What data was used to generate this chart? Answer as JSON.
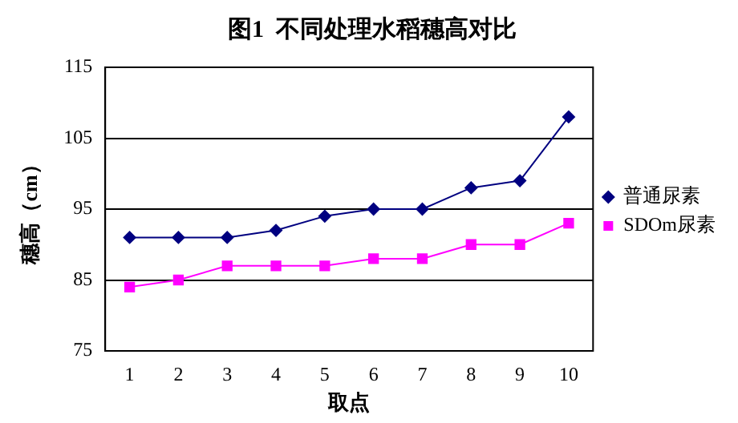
{
  "chart_data": {
    "type": "line",
    "title": "图1  不同处理水稻穗高对比",
    "xlabel": "取点",
    "ylabel": "穗高（cm）",
    "categories": [
      "1",
      "2",
      "3",
      "4",
      "5",
      "6",
      "7",
      "8",
      "9",
      "10"
    ],
    "series": [
      {
        "name": "普通尿素",
        "color": "#000080",
        "marker": "diamond",
        "values": [
          91,
          91,
          91,
          92,
          94,
          95,
          95,
          98,
          99,
          108
        ]
      },
      {
        "name": "SDOm尿素",
        "color": "#ff00ff",
        "marker": "square",
        "values": [
          84,
          85,
          87,
          87,
          87,
          88,
          88,
          90,
          90,
          93
        ]
      }
    ],
    "ylim": [
      75,
      115
    ],
    "yticks": [
      75,
      85,
      95,
      105,
      115
    ],
    "grid": "y",
    "legend": "right"
  }
}
